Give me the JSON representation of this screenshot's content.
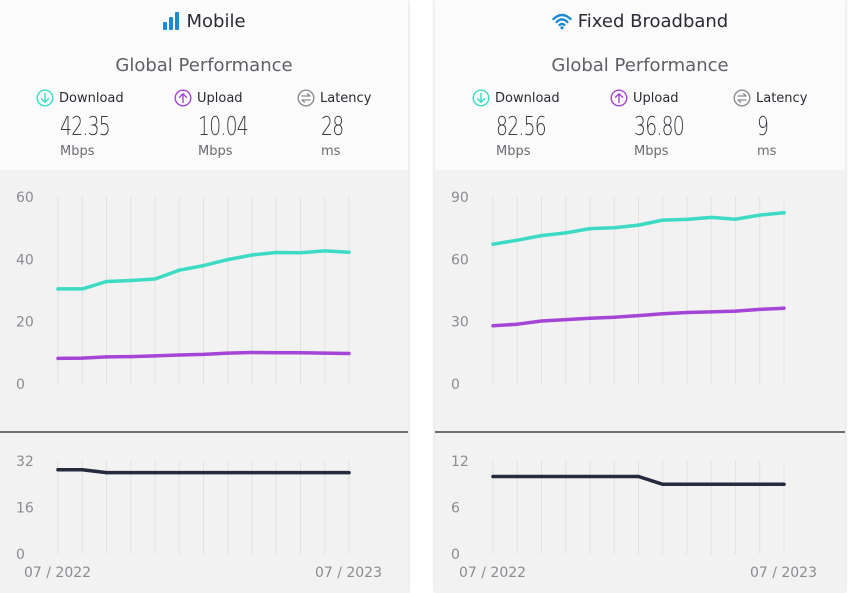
{
  "colors": {
    "download": "#3ddbc3",
    "upload": "#a545d6",
    "latency": "#252b3c",
    "grid": "#e2e2e2",
    "axis_text": "#8a8c92",
    "title_icon": "#1a8ad4"
  },
  "panels": [
    {
      "title": "Mobile",
      "title_icon": "signal-bars-icon",
      "subtitle": "Global Performance",
      "metrics": [
        {
          "label": "Download",
          "value": "42.35",
          "unit": "Mbps",
          "icon": "download-arrow-icon"
        },
        {
          "label": "Upload",
          "value": "10.04",
          "unit": "Mbps",
          "icon": "upload-arrow-icon"
        },
        {
          "label": "Latency",
          "value": "28",
          "unit": "ms",
          "icon": "latency-arrows-icon"
        }
      ],
      "x_labels": [
        "07 / 2022",
        "07 / 2023"
      ]
    },
    {
      "title": "Fixed Broadband",
      "title_icon": "wifi-icon",
      "subtitle": "Global Performance",
      "metrics": [
        {
          "label": "Download",
          "value": "82.56",
          "unit": "Mbps",
          "icon": "download-arrow-icon"
        },
        {
          "label": "Upload",
          "value": "36.80",
          "unit": "Mbps",
          "icon": "upload-arrow-icon"
        },
        {
          "label": "Latency",
          "value": "9",
          "unit": "ms",
          "icon": "latency-arrows-icon"
        }
      ],
      "x_labels": [
        "07 / 2022",
        "07 / 2023"
      ]
    }
  ],
  "chart_data": [
    {
      "type": "line",
      "panel": "Mobile",
      "x": [
        "07/2022",
        "08/2022",
        "09/2022",
        "10/2022",
        "11/2022",
        "12/2022",
        "01/2023",
        "02/2023",
        "03/2023",
        "04/2023",
        "05/2023",
        "06/2023",
        "07/2023"
      ],
      "ylim": [
        0,
        60
      ],
      "yticks": [
        0,
        20,
        40,
        60
      ],
      "series": [
        {
          "key": "download",
          "values": [
            30.5,
            30.5,
            32.9,
            33.2,
            33.7,
            36.5,
            38.0,
            39.9,
            41.4,
            42.2,
            42.1,
            42.7,
            42.3
          ]
        },
        {
          "key": "upload",
          "values": [
            8.2,
            8.3,
            8.7,
            8.8,
            9.0,
            9.3,
            9.5,
            9.9,
            10.1,
            10.0,
            10.0,
            9.9,
            9.8
          ]
        }
      ]
    },
    {
      "type": "line",
      "panel": "Mobile",
      "x": [
        "07/2022",
        "08/2022",
        "09/2022",
        "10/2022",
        "11/2022",
        "12/2022",
        "01/2023",
        "02/2023",
        "03/2023",
        "04/2023",
        "05/2023",
        "06/2023",
        "07/2023"
      ],
      "ylim": [
        0,
        32
      ],
      "yticks": [
        0,
        16,
        32
      ],
      "series": [
        {
          "key": "latency",
          "values": [
            29,
            29,
            28,
            28,
            28,
            28,
            28,
            28,
            28,
            28,
            28,
            28,
            28
          ]
        }
      ]
    },
    {
      "type": "line",
      "panel": "Fixed Broadband",
      "x": [
        "07/2022",
        "08/2022",
        "09/2022",
        "10/2022",
        "11/2022",
        "12/2022",
        "01/2023",
        "02/2023",
        "03/2023",
        "04/2023",
        "05/2023",
        "06/2023",
        "07/2023"
      ],
      "ylim": [
        0,
        90
      ],
      "yticks": [
        0,
        30,
        60,
        90
      ],
      "series": [
        {
          "key": "download",
          "values": [
            67.3,
            69.2,
            71.4,
            72.7,
            74.8,
            75.2,
            76.5,
            78.9,
            79.2,
            80.2,
            79.3,
            81.3,
            82.4
          ]
        },
        {
          "key": "upload",
          "values": [
            28.0,
            28.8,
            30.3,
            31.0,
            31.6,
            32.1,
            32.9,
            33.8,
            34.4,
            34.7,
            35.1,
            35.9,
            36.5
          ]
        }
      ]
    },
    {
      "type": "line",
      "panel": "Fixed Broadband",
      "x": [
        "07/2022",
        "08/2022",
        "09/2022",
        "10/2022",
        "11/2022",
        "12/2022",
        "01/2023",
        "02/2023",
        "03/2023",
        "04/2023",
        "05/2023",
        "06/2023",
        "07/2023"
      ],
      "ylim": [
        0,
        12
      ],
      "yticks": [
        0,
        6,
        12
      ],
      "series": [
        {
          "key": "latency",
          "values": [
            10,
            10,
            10,
            10,
            10,
            10,
            10,
            9,
            9,
            9,
            9,
            9,
            9
          ]
        }
      ]
    }
  ]
}
